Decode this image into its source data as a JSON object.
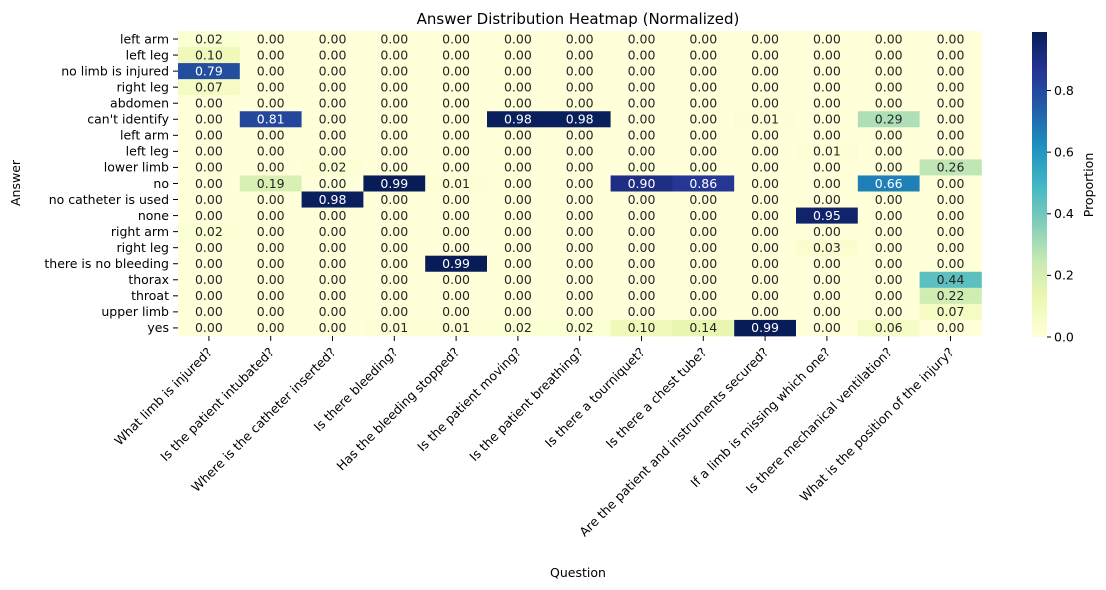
{
  "chart_data": {
    "type": "heatmap",
    "title": "Answer Distribution Heatmap (Normalized)",
    "xlabel": "Question",
    "ylabel": "Answer",
    "colorbar_label": "Proportion",
    "colorbar_ticks": [
      "0.0",
      "0.2",
      "0.4",
      "0.6",
      "0.8"
    ],
    "value_range": [
      0,
      0.99
    ],
    "colormap": [
      "#ffffd9",
      "#edf8b1",
      "#c7e9b4",
      "#7fcdbb",
      "#41b6c4",
      "#1d91c0",
      "#225ea8",
      "#253494",
      "#081d58"
    ],
    "x": [
      "What limb is injured?",
      "Is the patient intubated?",
      "Where is the catheter inserted?",
      "Is there bleeding?",
      "Has the bleeding stopped?",
      "Is the patient moving?",
      "Is the patient breathing?",
      "Is there a tourniquet?",
      "Is there a chest tube?",
      "Are the patient and instruments secured?",
      "If a limb is missing which one?",
      "Is there mechanical ventilation?",
      "What is the position of the injury?"
    ],
    "y": [
      "left arm",
      "left leg",
      "no limb is injured",
      "right leg",
      "abdomen",
      "can't identify",
      "left arm",
      "left leg",
      "lower limb",
      "no",
      "no catheter is used",
      "none",
      "right arm",
      "right leg",
      "there is no bleeding",
      "thorax",
      "throat",
      "upper limb",
      "yes"
    ],
    "values": [
      [
        0.02,
        0,
        0,
        0,
        0,
        0,
        0,
        0,
        0,
        0,
        0,
        0,
        0
      ],
      [
        0.1,
        0,
        0,
        0,
        0,
        0,
        0,
        0,
        0,
        0,
        0,
        0,
        0
      ],
      [
        0.79,
        0,
        0,
        0,
        0,
        0,
        0,
        0,
        0,
        0,
        0,
        0,
        0
      ],
      [
        0.07,
        0,
        0,
        0,
        0,
        0,
        0,
        0,
        0,
        0,
        0,
        0,
        0
      ],
      [
        0,
        0,
        0,
        0,
        0,
        0,
        0,
        0,
        0,
        0,
        0,
        0,
        0
      ],
      [
        0,
        0.81,
        0,
        0,
        0,
        0.98,
        0.98,
        0,
        0,
        0.01,
        0,
        0.29,
        0
      ],
      [
        0,
        0,
        0,
        0,
        0,
        0,
        0,
        0,
        0,
        0,
        0,
        0,
        0
      ],
      [
        0,
        0,
        0,
        0,
        0,
        0,
        0,
        0,
        0,
        0,
        0.01,
        0,
        0
      ],
      [
        0,
        0,
        0.02,
        0,
        0,
        0,
        0,
        0,
        0,
        0,
        0,
        0,
        0.26
      ],
      [
        0,
        0.19,
        0,
        0.99,
        0.01,
        0,
        0,
        0.9,
        0.86,
        0,
        0,
        0.66,
        0
      ],
      [
        0,
        0,
        0.98,
        0,
        0,
        0,
        0,
        0,
        0,
        0,
        0,
        0,
        0
      ],
      [
        0,
        0,
        0,
        0,
        0,
        0,
        0,
        0,
        0,
        0,
        0.95,
        0,
        0
      ],
      [
        0.02,
        0,
        0,
        0,
        0,
        0,
        0,
        0,
        0,
        0,
        0,
        0,
        0
      ],
      [
        0,
        0,
        0,
        0,
        0,
        0,
        0,
        0,
        0,
        0,
        0.03,
        0,
        0
      ],
      [
        0,
        0,
        0,
        0,
        0.99,
        0,
        0,
        0,
        0,
        0,
        0,
        0,
        0
      ],
      [
        0,
        0,
        0,
        0,
        0,
        0,
        0,
        0,
        0,
        0,
        0,
        0,
        0.44
      ],
      [
        0,
        0,
        0,
        0,
        0,
        0,
        0,
        0,
        0,
        0,
        0,
        0,
        0.22
      ],
      [
        0,
        0,
        0,
        0,
        0,
        0,
        0,
        0,
        0,
        0,
        0,
        0,
        0.07
      ],
      [
        0,
        0,
        0,
        0.01,
        0.01,
        0.02,
        0.02,
        0.1,
        0.14,
        0.99,
        0,
        0.06,
        0
      ]
    ]
  }
}
